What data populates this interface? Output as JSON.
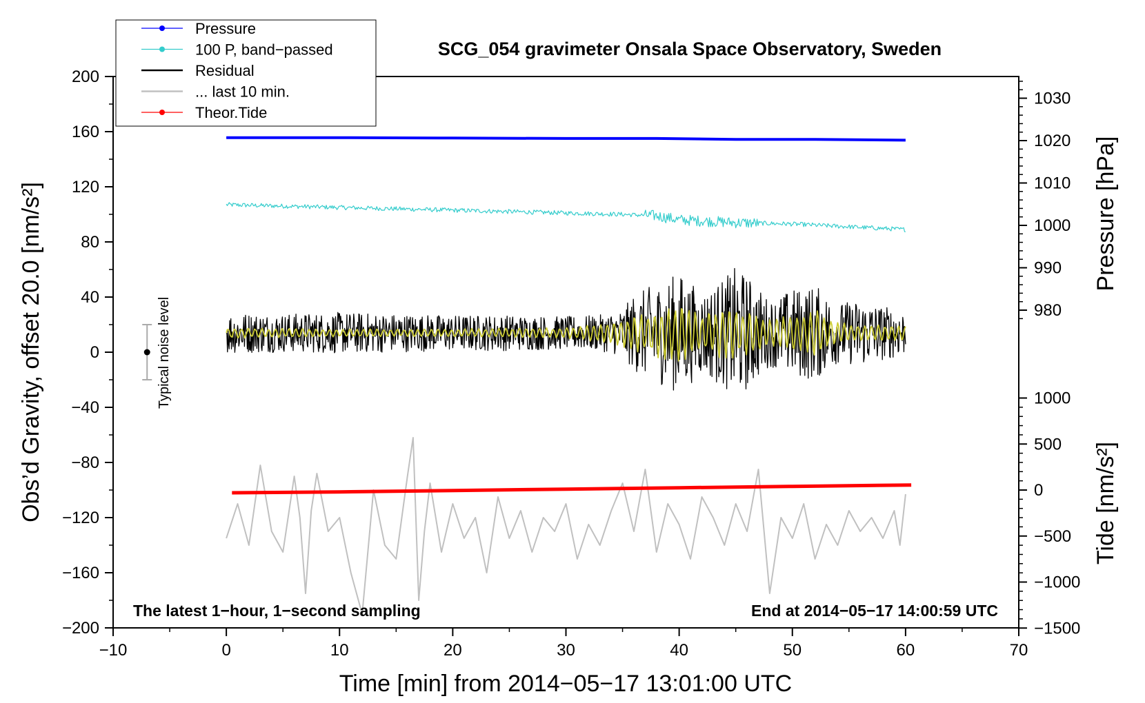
{
  "chart_data": {
    "type": "line",
    "title": "SCG_054 gravimeter Onsala Space Observatory, Sweden",
    "xlabel": "Time [min] from 2014−05−17 13:01:00 UTC",
    "ylabel_left": "Obs’d Gravity, offset 20.0 [nm/s²]",
    "ylabel_pressure": "Pressure [hPa]",
    "ylabel_tide": "Tide [nm/s²]",
    "xlim": [
      -10,
      70
    ],
    "ylim": [
      -200,
      200
    ],
    "pressure_lim": [
      975,
      1035
    ],
    "tide_lim": [
      -1500,
      1500
    ],
    "x_ticks": [
      "−10",
      "0",
      "10",
      "20",
      "30",
      "40",
      "50",
      "60",
      "70"
    ],
    "y_ticks": [
      "200",
      "160",
      "120",
      "80",
      "40",
      "0",
      "−40",
      "−80",
      "−120",
      "−160",
      "−200"
    ],
    "pressure_ticks": [
      "1030",
      "1020",
      "1010",
      "1000",
      "990",
      "980"
    ],
    "tide_ticks": [
      "1000",
      "500",
      "0",
      "−500",
      "−1000",
      "−1500"
    ],
    "annotation_left": "The latest 1−hour, 1−second sampling",
    "annotation_right": "End at 2014−05−17 14:00:59 UTC",
    "noise_label": "Typical noise level",
    "noise_bar": {
      "x": -7,
      "y": 0,
      "half_range": 20
    },
    "legend": [
      {
        "label": "Pressure",
        "color": "#0000ff",
        "marker": true
      },
      {
        "label": "100 P, band−passed",
        "color": "#33cccc",
        "marker": true
      },
      {
        "label": "Residual",
        "color": "#000000",
        "marker": false
      },
      {
        "label": "... last 10 min.",
        "color": "#c0c0c0",
        "marker": false
      },
      {
        "label": "Theor.Tide",
        "color": "#ff0000",
        "marker": true
      }
    ],
    "series": [
      {
        "name": "Pressure",
        "axis": "pressure",
        "color": "#0000ff",
        "x": [
          0,
          10,
          20,
          30,
          38,
          45,
          52,
          60
        ],
        "y": [
          1020.7,
          1020.7,
          1020.6,
          1020.5,
          1020.5,
          1020.3,
          1020.3,
          1020.1
        ]
      },
      {
        "name": "100 P, band−passed",
        "axis": "gravity",
        "color": "#33cccc",
        "x": [
          0,
          5,
          10,
          15,
          20,
          25,
          30,
          35,
          38,
          40,
          45,
          50,
          55,
          60
        ],
        "y": [
          107,
          106,
          105,
          104,
          103,
          102,
          101,
          100,
          99,
          96,
          94,
          93,
          91,
          89
        ]
      },
      {
        "name": "Residual",
        "axis": "gravity",
        "color": "#000000",
        "envelope": {
          "x": [
            0,
            5,
            10,
            15,
            20,
            25,
            30,
            33,
            35,
            36,
            38,
            40,
            42,
            44,
            45,
            46,
            48,
            50,
            52,
            54,
            56,
            58,
            60
          ],
          "amp": [
            15,
            14,
            15,
            14,
            13,
            13,
            12,
            13,
            17,
            28,
            36,
            44,
            30,
            40,
            48,
            42,
            24,
            32,
            35,
            22,
            24,
            20,
            16
          ]
        },
        "mean": 14
      },
      {
        "name": "Residual (smoothed)",
        "axis": "gravity",
        "color": "#cccc33",
        "envelope": {
          "x": [
            0,
            10,
            20,
            30,
            34,
            38,
            40,
            42,
            44,
            46,
            48,
            50,
            52,
            54,
            56,
            60
          ],
          "amp": [
            4,
            3,
            3,
            4,
            8,
            18,
            22,
            14,
            20,
            16,
            10,
            14,
            18,
            8,
            6,
            6
          ]
        },
        "mean": 14
      },
      {
        "name": "... last 10 min.",
        "axis": "gravity",
        "color": "#c0c0c0",
        "x": [
          0,
          1,
          2,
          3,
          4,
          5,
          6,
          6.5,
          7,
          7.5,
          8,
          9,
          10,
          11,
          12,
          13,
          14,
          15,
          16,
          16.5,
          17,
          17.5,
          18,
          19,
          20,
          21,
          22,
          23,
          24,
          25,
          26,
          27,
          28,
          29,
          30,
          31,
          32,
          33,
          34,
          35,
          36,
          37,
          38,
          39,
          40,
          41,
          42,
          43,
          44,
          45,
          46,
          47,
          48,
          49,
          50,
          51,
          52,
          53,
          54,
          55,
          56,
          57,
          58,
          59,
          59.5,
          60
        ],
        "y": [
          -135,
          -110,
          -140,
          -82,
          -130,
          -145,
          -90,
          -120,
          -175,
          -115,
          -88,
          -130,
          -120,
          -160,
          -190,
          -100,
          -140,
          -150,
          -90,
          -62,
          -180,
          -130,
          -95,
          -145,
          -110,
          -135,
          -120,
          -160,
          -105,
          -135,
          -115,
          -145,
          -120,
          -130,
          -110,
          -150,
          -125,
          -140,
          -115,
          -95,
          -130,
          -85,
          -145,
          -110,
          -125,
          -150,
          -105,
          -120,
          -140,
          -110,
          -130,
          -85,
          -175,
          -120,
          -135,
          -110,
          -150,
          -125,
          -140,
          -115,
          -130,
          -120,
          -135,
          -115,
          -140,
          -103
        ]
      },
      {
        "name": "Theor.Tide",
        "axis": "tide",
        "color": "#ff0000",
        "x": [
          0.5,
          10,
          20,
          30,
          40,
          50,
          60.5
        ],
        "y": [
          -30,
          -20,
          -5,
          10,
          25,
          40,
          55
        ]
      }
    ]
  }
}
